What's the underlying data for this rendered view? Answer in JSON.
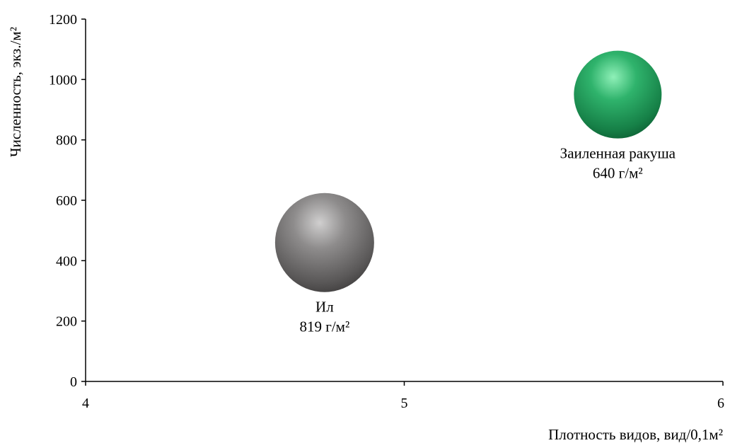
{
  "chart_data": {
    "type": "scatter",
    "xlabel": "Плотность видов, вид/0,1м²",
    "ylabel": "Численность, экз./м²",
    "xlim": [
      4,
      6
    ],
    "ylim": [
      0,
      1200
    ],
    "x_ticks": [
      "4",
      "5",
      "6"
    ],
    "y_ticks": [
      "0",
      "200",
      "400",
      "600",
      "800",
      "1000",
      "1200"
    ],
    "points": [
      {
        "name": "Ил",
        "label": "819 г/м²",
        "x": 4.75,
        "y": 460,
        "color": "#6e6c6c"
      },
      {
        "name": "Заиленная ракуша",
        "label": "640 г/м²",
        "x": 5.67,
        "y": 950,
        "color": "#1e9e5a"
      }
    ]
  }
}
